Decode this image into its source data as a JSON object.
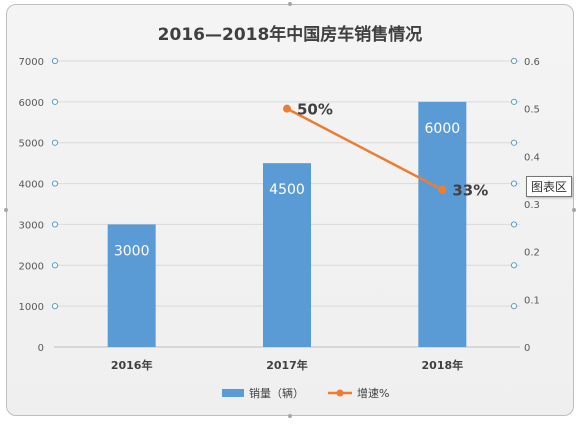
{
  "chart_data": {
    "type": "bar",
    "title": "2016—2018年中国房车销售情况",
    "categories": [
      "2016年",
      "2017年",
      "2018年"
    ],
    "series": [
      {
        "name": "销量（辆）",
        "type": "bar",
        "axis": "left",
        "values": [
          3000,
          4500,
          6000
        ],
        "data_labels": [
          "3000",
          "4500",
          "6000"
        ],
        "color": "#5b9bd5"
      },
      {
        "name": "增速%",
        "type": "line",
        "axis": "right",
        "values": [
          null,
          0.5,
          0.33
        ],
        "data_labels": [
          "",
          "50%",
          "33%"
        ],
        "color": "#ed7d31"
      }
    ],
    "ylim": [
      0,
      7000
    ],
    "yticks": [
      "0",
      "1000",
      "2000",
      "3000",
      "4000",
      "5000",
      "6000",
      "7000"
    ],
    "y2lim": [
      0,
      0.6
    ],
    "y2ticks": [
      "0",
      "0.1",
      "0.2",
      "0.3",
      "0.4",
      "0.5",
      "0.6"
    ],
    "grid": true,
    "legend": "bottom"
  },
  "tooltip": {
    "label": "图表区"
  },
  "colors": {
    "bar": "#5b9bd5",
    "line": "#ed7d31",
    "grid": "#d9d9d9",
    "handle": "#5b9bd5"
  }
}
